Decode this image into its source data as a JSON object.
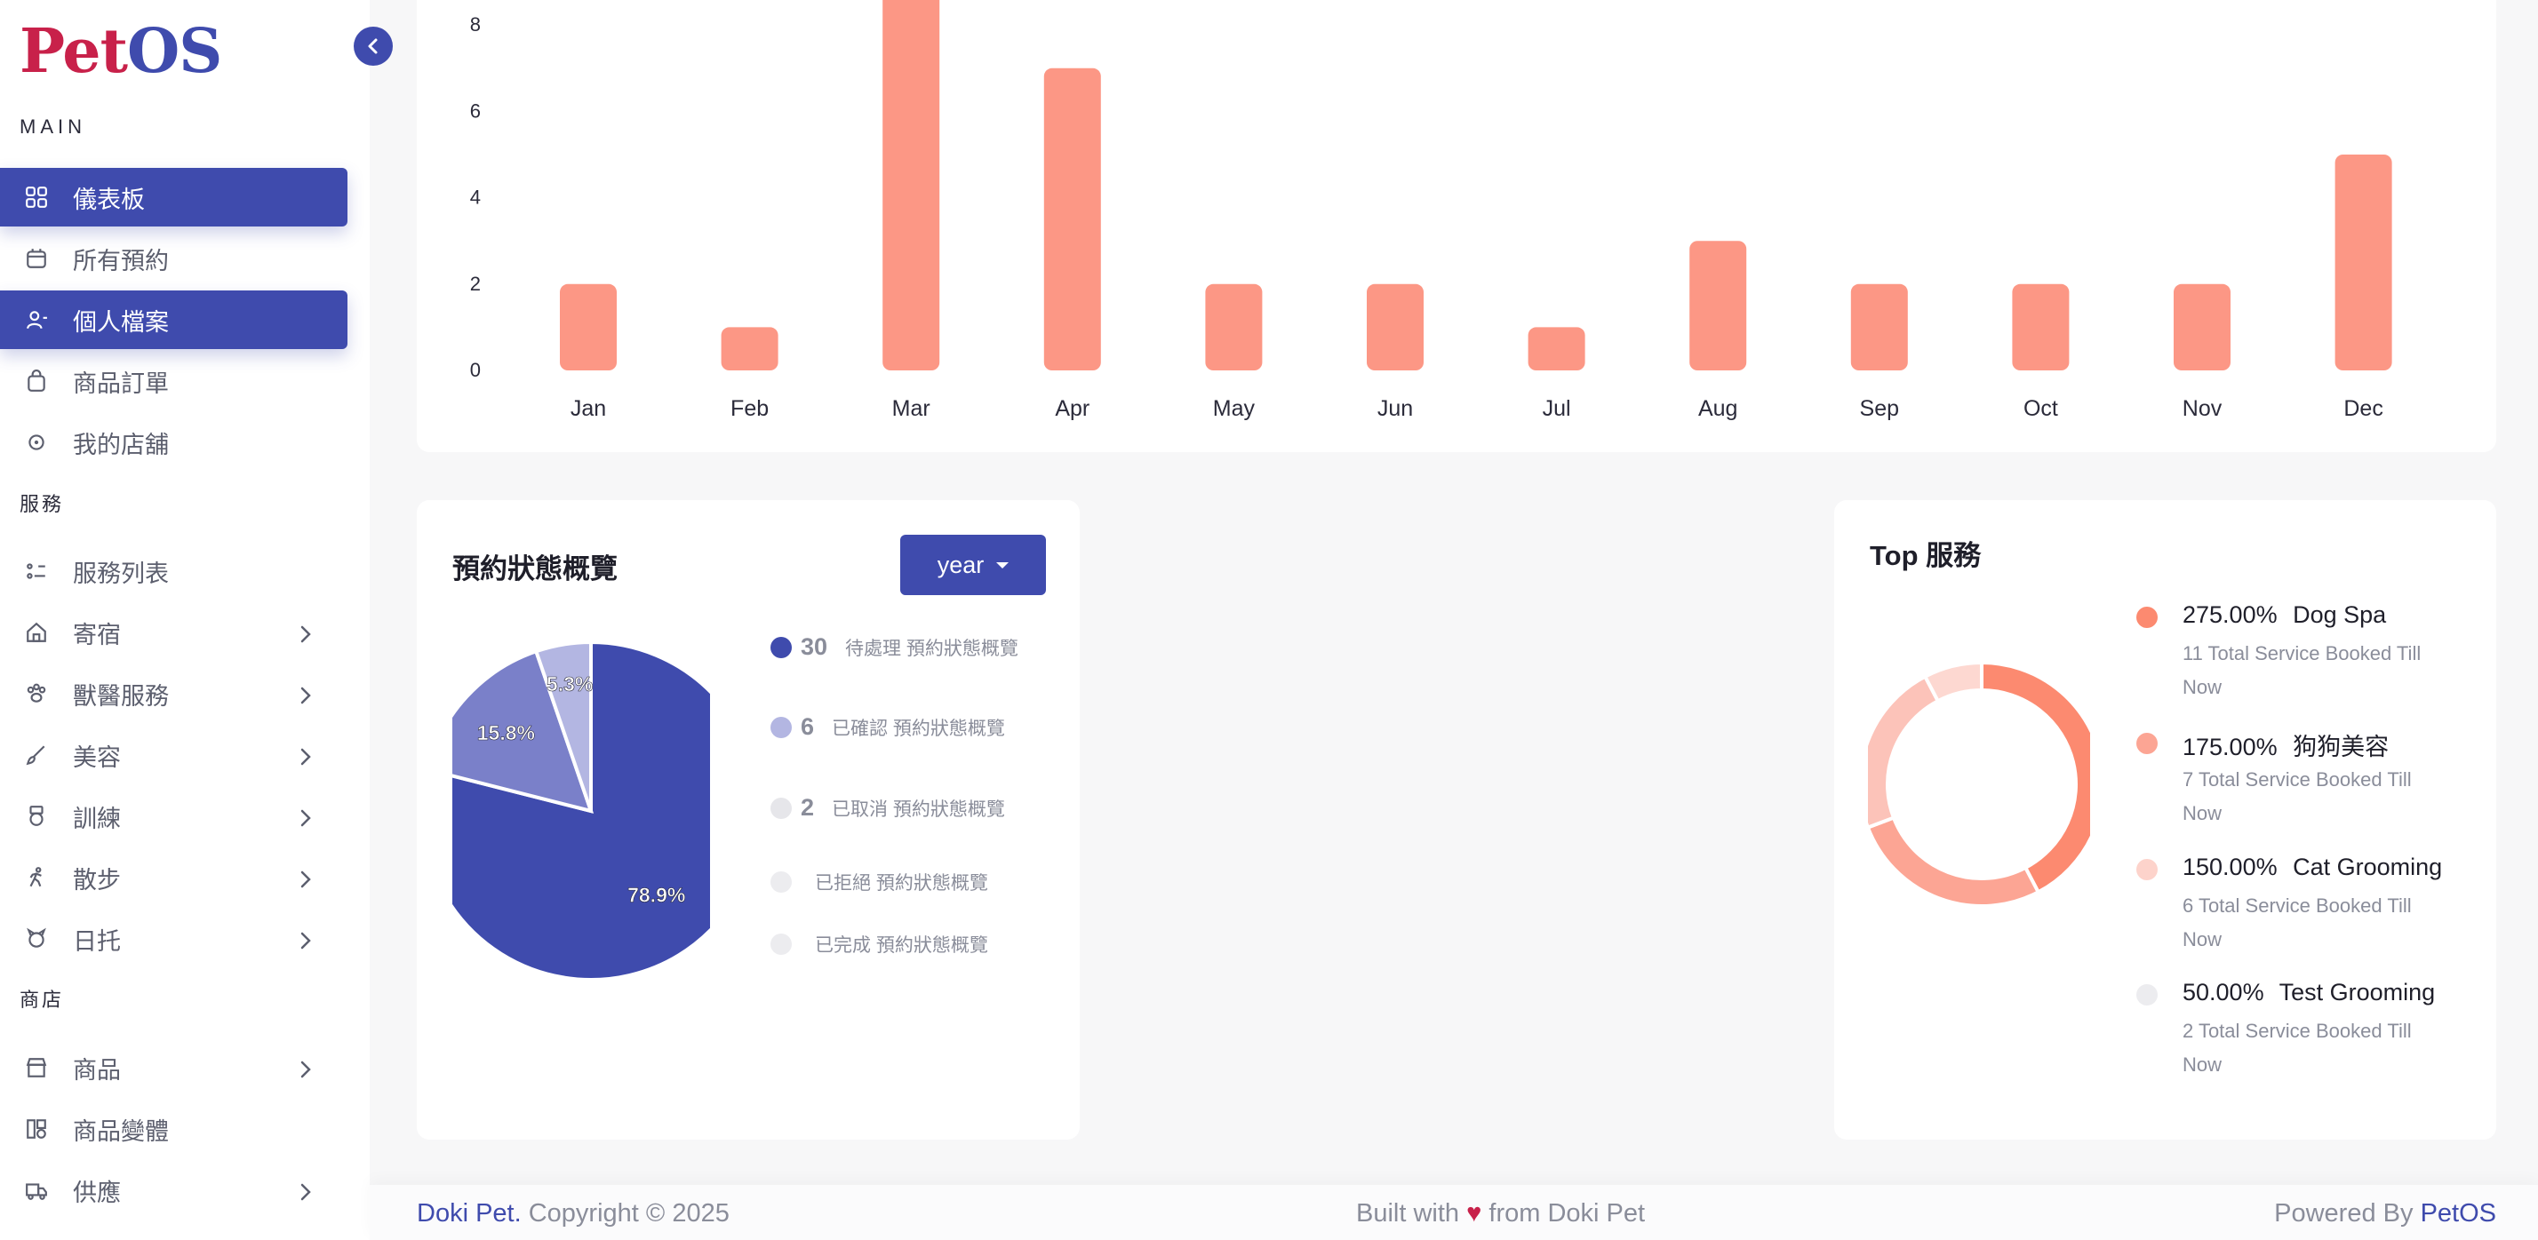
{
  "app": {
    "logo_part1": "Pet",
    "logo_part2": "OS"
  },
  "colors": {
    "primary": "#3f4bad",
    "bar": "#fc9785",
    "accent_red": "#c8214a"
  },
  "sidebar": {
    "sections": {
      "main": "MAIN",
      "services": "服務",
      "shop": "商店"
    },
    "items": [
      {
        "label": "儀表板",
        "icon": "grid-icon",
        "active": true
      },
      {
        "label": "所有預約",
        "icon": "calendar-icon"
      },
      {
        "label": "個人檔案",
        "icon": "user-icon",
        "active": true
      },
      {
        "label": "商品訂單",
        "icon": "bag-icon"
      },
      {
        "label": "我的店舖",
        "icon": "store-icon"
      },
      {
        "label": "服務列表",
        "icon": "list-icon"
      },
      {
        "label": "寄宿",
        "icon": "home-icon",
        "chevron": true
      },
      {
        "label": "獸醫服務",
        "icon": "paw-icon",
        "chevron": true
      },
      {
        "label": "美容",
        "icon": "brush-icon",
        "chevron": true
      },
      {
        "label": "訓練",
        "icon": "medal-icon",
        "chevron": true
      },
      {
        "label": "散步",
        "icon": "walk-icon",
        "chevron": true
      },
      {
        "label": "日托",
        "icon": "pet-icon",
        "chevron": true
      },
      {
        "label": "商品",
        "icon": "shop-icon",
        "chevron": true
      },
      {
        "label": "商品變體",
        "icon": "variants-icon"
      },
      {
        "label": "供應",
        "icon": "truck-icon",
        "chevron": true
      }
    ]
  },
  "chart_data": [
    {
      "type": "bar",
      "categories": [
        "Jan",
        "Feb",
        "Mar",
        "Apr",
        "May",
        "Jun",
        "Jul",
        "Aug",
        "Sep",
        "Oct",
        "Nov",
        "Dec"
      ],
      "values": [
        2,
        1,
        9,
        7,
        2,
        2,
        1,
        3,
        2,
        2,
        2,
        5
      ],
      "y_ticks": [
        "0",
        "2",
        "4",
        "6",
        "8"
      ],
      "ylim": [
        0,
        8
      ],
      "color": "#fc9785"
    },
    {
      "type": "pie",
      "title": "預約狀態概覽",
      "labels": [
        "待處理",
        "已確認",
        "已取消"
      ],
      "values": [
        30,
        6,
        2
      ],
      "percent_labels": [
        "78.9%",
        "15.8%",
        "5.3%"
      ],
      "colors": [
        "#3f4bad",
        "#7a80c9",
        "#b3b6e2"
      ]
    },
    {
      "type": "pie",
      "title": "Top 服務",
      "labels": [
        "Dog Spa",
        "狗狗美容",
        "Cat Grooming",
        "Test Grooming"
      ],
      "values": [
        11,
        7,
        6,
        2
      ],
      "colors": [
        "#fc8a70",
        "#fca594",
        "#fcc3b9",
        "#fdd8d1"
      ]
    }
  ],
  "status_card": {
    "title": "預約狀態概覽",
    "dropdown": "year",
    "legend": [
      {
        "count": "30",
        "label": "待處理 預約狀態概覽",
        "color": "#3f4bad"
      },
      {
        "count": "6",
        "label": "已確認 預約狀態概覽",
        "color": "#b3b6e2"
      },
      {
        "count": "2",
        "label": "已取消 預約狀態概覽",
        "color": "#e6e6ea"
      },
      {
        "count": "",
        "label": "已拒絕 預約狀態概覽",
        "color": "#ececef"
      },
      {
        "count": "",
        "label": "已完成 預約狀態概覽",
        "color": "#ececef"
      }
    ]
  },
  "top_services": {
    "title": "Top 服務",
    "items": [
      {
        "pct": "275.00%",
        "name": "Dog Spa",
        "sub": "11 Total Service Booked Till Now",
        "color": "#fc8a70"
      },
      {
        "pct": "175.00%",
        "name": "狗狗美容",
        "sub": "7 Total Service Booked Till Now",
        "color": "#fca594"
      },
      {
        "pct": "150.00%",
        "name": "Cat Grooming",
        "sub": "6 Total Service Booked Till Now",
        "color": "#fdd3cb"
      },
      {
        "pct": "50.00%",
        "name": "Test Grooming",
        "sub": "2 Total Service Booked Till Now",
        "color": "#ececef"
      }
    ]
  },
  "footer": {
    "brand": "Doki Pet.",
    "copyright": " Copyright © 2025",
    "built_prefix": "Built with ",
    "heart": "♥",
    "built_suffix": " from Doki Pet",
    "powered_prefix": "Powered By ",
    "powered_brand": "PetOS"
  }
}
